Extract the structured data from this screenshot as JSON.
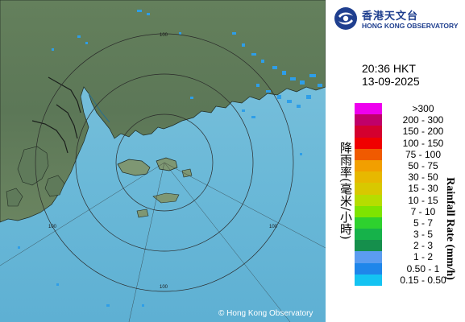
{
  "map": {
    "ring_label": "100",
    "copyright": "Hong Kong Observatory",
    "colors": {
      "sea": "#69b8d6",
      "land": "#5e7a5c",
      "echo": "#2e9ee8",
      "ring": "#2a2a2a"
    }
  },
  "header": {
    "logo_zh": "香港天文台",
    "logo_en": "HONG KONG OBSERVATORY",
    "logo_icon": "hko-swirl-icon"
  },
  "observation": {
    "time": "20:36 HKT",
    "date": "13-09-2025"
  },
  "legend": {
    "unit_zh": "降雨率(毫米/小時)",
    "unit_en": "Rainfall Rate (mm/h)",
    "items": [
      {
        "label": ">300",
        "color": "#ee00ee"
      },
      {
        "label": "200 - 300",
        "color": "#c0006a"
      },
      {
        "label": "150 - 200",
        "color": "#d4002f"
      },
      {
        "label": "100 - 150",
        "color": "#f00000"
      },
      {
        "label": "75 - 100",
        "color": "#f05a00"
      },
      {
        "label": "50 - 75",
        "color": "#f29f00"
      },
      {
        "label": "30 - 50",
        "color": "#e7b800"
      },
      {
        "label": "15 - 30",
        "color": "#d8c800"
      },
      {
        "label": "10 - 15",
        "color": "#b6dd00"
      },
      {
        "label": "7 - 10",
        "color": "#7ee400"
      },
      {
        "label": "5 - 7",
        "color": "#2ed12e"
      },
      {
        "label": "3 - 5",
        "color": "#16b24a"
      },
      {
        "label": "2 - 3",
        "color": "#158f4c"
      },
      {
        "label": "1 - 2",
        "color": "#5b9cf0"
      },
      {
        "label": "0.50 - 1",
        "color": "#1f86ea"
      },
      {
        "label": "0.15 - 0.50",
        "color": "#14c3f2"
      }
    ]
  }
}
